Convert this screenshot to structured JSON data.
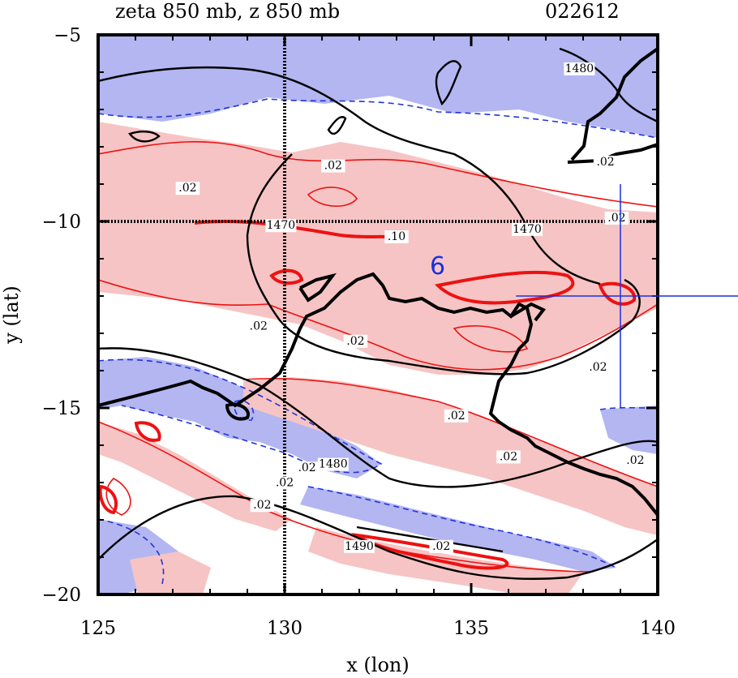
{
  "title": {
    "left": "zeta 850 mb, z 850 mb",
    "right": "022612"
  },
  "chart_data": {
    "type": "contour",
    "xlabel": "x (lon)",
    "ylabel": "y (lat)",
    "xlim": [
      125,
      140
    ],
    "ylim": [
      -20,
      -5
    ],
    "x_ticks": [
      125,
      130,
      135,
      140
    ],
    "y_ticks": [
      -5,
      -10,
      -15,
      -20
    ],
    "x_tick_labels": [
      "125",
      "130",
      "135",
      "140"
    ],
    "y_tick_labels": [
      "−5",
      "−10",
      "−15",
      "−20"
    ],
    "gridlines": {
      "lon": 130,
      "lat": -10
    },
    "height_contours": [
      {
        "value": 1470,
        "label": "1470",
        "lon": 129.9,
        "lat": -10.2
      },
      {
        "value": 1470,
        "label": "1470",
        "lon": 136.5,
        "lat": -10.3
      },
      {
        "value": 1480,
        "label": "1480",
        "lon": 131.3,
        "lat": -16.6
      },
      {
        "value": 1480,
        "label": "1480",
        "lon": 137.9,
        "lat": -6.0
      },
      {
        "value": 1490,
        "label": "1490",
        "lon": 132.0,
        "lat": -18.8
      }
    ],
    "vorticity_labels": [
      {
        "label": ".02",
        "lon": 131.3,
        "lat": -8.6
      },
      {
        "label": ".02",
        "lon": 127.4,
        "lat": -9.2
      },
      {
        "label": ".02",
        "lon": 129.3,
        "lat": -12.9
      },
      {
        "label": ".02",
        "lon": 131.9,
        "lat": -13.3
      },
      {
        "label": ".10",
        "lon": 133.0,
        "lat": -10.5
      },
      {
        "label": ".02",
        "lon": 138.9,
        "lat": -10.0
      },
      {
        "label": ".02",
        "lon": 138.6,
        "lat": -8.5
      },
      {
        "label": ".02",
        "lon": 138.4,
        "lat": -14.0
      },
      {
        "label": ".02",
        "lon": 134.6,
        "lat": -15.3
      },
      {
        "label": ".02",
        "lon": 130.6,
        "lat": -16.7
      },
      {
        "label": ".02",
        "lon": 130.0,
        "lat": -17.1
      },
      {
        "label": ".02",
        "lon": 136.0,
        "lat": -16.4
      },
      {
        "label": ".02",
        "lon": 129.4,
        "lat": -17.7
      },
      {
        "label": ".02",
        "lon": 134.2,
        "lat": -18.8
      },
      {
        "label": ".02",
        "lon": 139.4,
        "lat": -16.5
      }
    ],
    "storm": {
      "label": "6",
      "lon": 134.1,
      "lat": -11.2
    },
    "track_cross": {
      "lon": 139.0,
      "lat": -12.0,
      "lon_min": 136.2,
      "lon_max": 143.0,
      "lat_min": -15.0,
      "lat_max": -9.0
    },
    "legend": {
      "positive_vorticity": "red, pink fill",
      "negative_vorticity": "blue dashed, blue fill",
      "height": "black"
    }
  },
  "colors": {
    "positive_fill": "#f6c4c4",
    "negative_fill": "#b3b6f1",
    "positive_line": "#ee1111",
    "negative_line": "#2233dd",
    "height_line": "#000000",
    "marker": "#1a2fe0"
  }
}
